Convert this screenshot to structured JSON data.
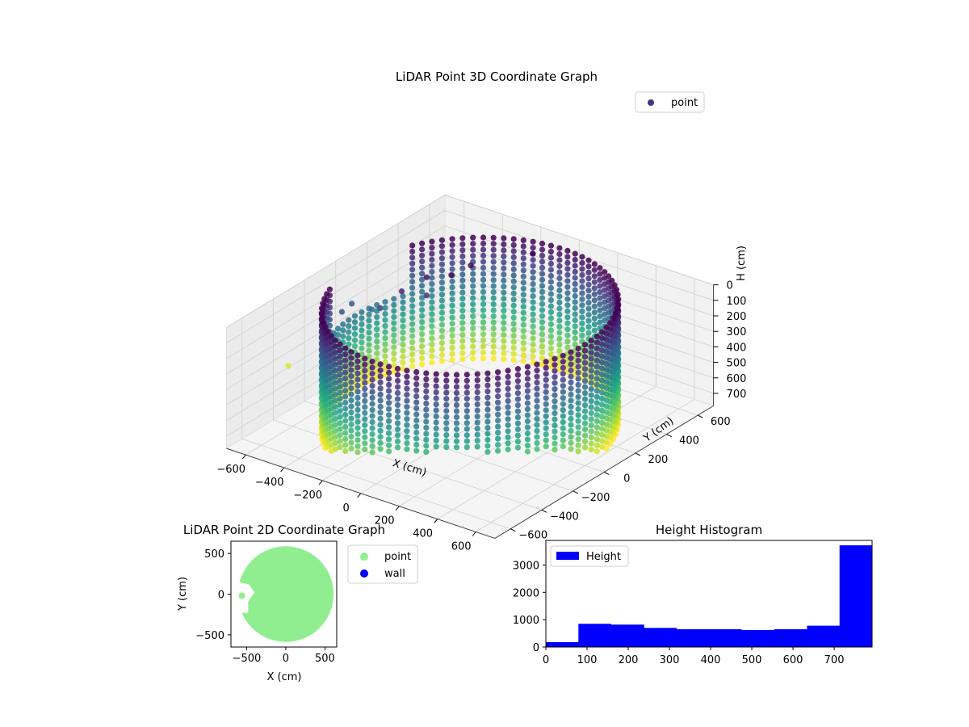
{
  "chart_data": [
    {
      "type": "scatter",
      "projection": "3d",
      "title": "LiDAR Point 3D Coordinate Graph",
      "xlabel": "X (cm)",
      "ylabel": "Y (cm)",
      "zlabel": "H (cm)",
      "xlim": [
        -700,
        700
      ],
      "ylim": [
        -700,
        700
      ],
      "zlim": [
        0,
        780
      ],
      "z_inverted": true,
      "xticks": [
        -600,
        -400,
        -200,
        0,
        200,
        400,
        600
      ],
      "yticks": [
        -600,
        -400,
        -200,
        0,
        200,
        400,
        600
      ],
      "zticks": [
        0,
        100,
        200,
        300,
        400,
        500,
        600,
        700
      ],
      "grid": true,
      "legend": {
        "position": "top-right",
        "entries": [
          {
            "label": "point",
            "color": "#46327e"
          }
        ]
      },
      "colormap": "viridis",
      "series": [
        {
          "name": "point",
          "shape": "cylindrical wall",
          "center": [
            0,
            0
          ],
          "radius": 600,
          "height_range": [
            0,
            780
          ],
          "opening_side": "negative x"
        }
      ],
      "outliers": [
        {
          "x": -650,
          "y": -80,
          "h": 420
        },
        {
          "x": -570,
          "y": -120,
          "h": 200
        },
        {
          "x": -560,
          "y": 60,
          "h": 290
        },
        {
          "x": -600,
          "y": -20,
          "h": 220
        },
        {
          "x": -80,
          "y": 500,
          "h": 0
        },
        {
          "x": -340,
          "y": 140,
          "h": 40
        },
        {
          "x": -260,
          "y": 200,
          "h": 30
        },
        {
          "x": -300,
          "y": 90,
          "h": 110
        },
        {
          "x": -380,
          "y": 30,
          "h": 80
        },
        {
          "x": -420,
          "y": -60,
          "h": 150
        },
        {
          "x": -240,
          "y": 300,
          "h": 20
        },
        {
          "x": -900,
          "y": -900,
          "h": 700
        }
      ]
    },
    {
      "type": "scatter",
      "title": "LiDAR Point 2D Coordinate Graph",
      "xlabel": "X (cm)",
      "ylabel": "Y (cm)",
      "xlim": [
        -700,
        650
      ],
      "ylim": [
        -650,
        650
      ],
      "xticks": [
        -500,
        0,
        500
      ],
      "yticks": [
        -500,
        0,
        500
      ],
      "legend": {
        "position": "outside right",
        "entries": [
          {
            "label": "point",
            "color": "#90ee90"
          },
          {
            "label": "wall",
            "color": "#0000ff"
          }
        ]
      },
      "series": [
        {
          "name": "point",
          "color": "#90ee90",
          "shape": "filled disc",
          "center": [
            0,
            0
          ],
          "radius": 610
        }
      ]
    },
    {
      "type": "bar",
      "title": "Height Histogram",
      "xlabel": "",
      "ylabel": "",
      "xlim": [
        0,
        792
      ],
      "ylim": [
        0,
        3900
      ],
      "xticks": [
        0,
        100,
        200,
        300,
        400,
        500,
        600,
        700
      ],
      "yticks": [
        0,
        1000,
        2000,
        3000
      ],
      "legend": {
        "position": "top-left",
        "entries": [
          {
            "label": "Height",
            "color": "#0000ff"
          }
        ]
      },
      "bin_edges": [
        0,
        79,
        158,
        238,
        317,
        396,
        475,
        554,
        634,
        713,
        792
      ],
      "series": [
        {
          "name": "Height",
          "color": "#0000ff",
          "values": [
            180,
            850,
            820,
            700,
            650,
            650,
            620,
            650,
            780,
            3720
          ]
        }
      ]
    }
  ]
}
